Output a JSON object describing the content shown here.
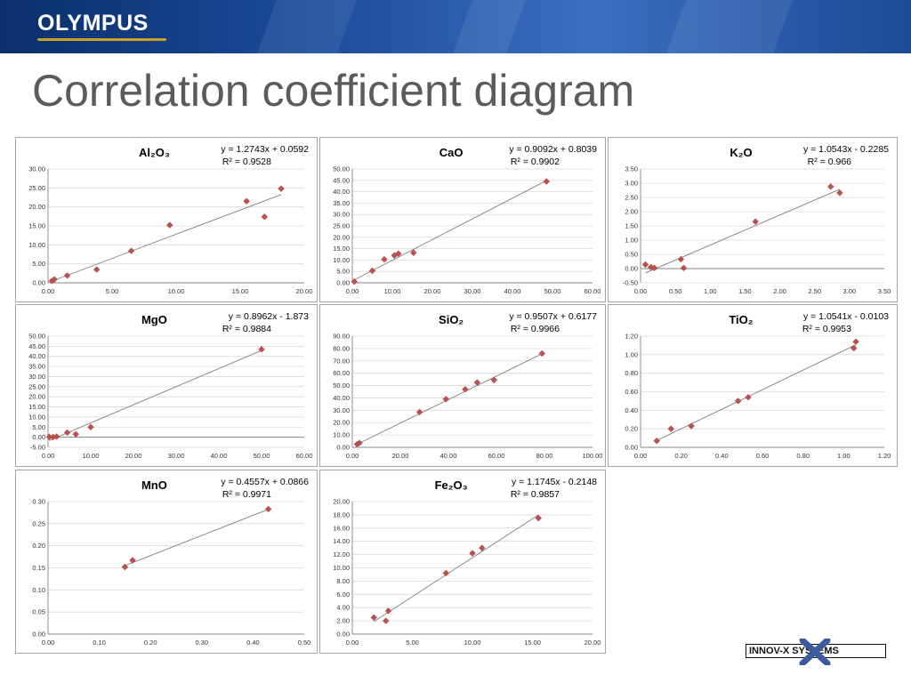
{
  "header": {
    "brand": "OLYMPUS"
  },
  "slide_title": "Correlation coefficient diagram",
  "footer": {
    "logo_text": "INNOV-X SYSTEMS"
  },
  "colors": {
    "marker": "#c0504d",
    "trendline": "#7f7f7f",
    "grid": "#d9d9d9",
    "title_text": "#5b5b5b"
  },
  "chart_data": [
    {
      "id": "al2o3",
      "type": "scatter",
      "title": "Al₂O₃",
      "equation": "y = 1.2743x + 0.0592",
      "r2": "R² = 0.9528",
      "xlim": [
        0,
        20
      ],
      "xticks": [
        0,
        5,
        10,
        15,
        20
      ],
      "ylim": [
        0,
        30
      ],
      "yticks": [
        0,
        5,
        10,
        15,
        20,
        25,
        30
      ],
      "decimals": 2,
      "points": [
        [
          0.3,
          0.5
        ],
        [
          0.5,
          0.9
        ],
        [
          1.5,
          1.9
        ],
        [
          3.8,
          3.5
        ],
        [
          6.5,
          8.4
        ],
        [
          9.5,
          15.2
        ],
        [
          15.5,
          21.5
        ],
        [
          16.9,
          17.4
        ],
        [
          18.2,
          24.8
        ]
      ],
      "trend": [
        0.3,
        18.2
      ]
    },
    {
      "id": "cao",
      "type": "scatter",
      "title": "CaO",
      "equation": "y = 0.9092x + 0.8039",
      "r2": "R² = 0.9902",
      "xlim": [
        0,
        60
      ],
      "xticks": [
        0,
        10,
        20,
        30,
        40,
        50,
        60
      ],
      "ylim": [
        0,
        50
      ],
      "yticks": [
        0,
        5,
        10,
        15,
        20,
        25,
        30,
        35,
        40,
        45,
        50
      ],
      "decimals": 2,
      "points": [
        [
          0.5,
          0.5
        ],
        [
          5,
          5.3
        ],
        [
          8,
          10.3
        ],
        [
          10.5,
          12
        ],
        [
          11.5,
          12.8
        ],
        [
          15.3,
          13.2
        ],
        [
          48.5,
          44.5
        ]
      ],
      "trend": [
        0.5,
        48.5
      ]
    },
    {
      "id": "k2o",
      "type": "scatter",
      "title": "K₂O",
      "equation": "y = 1.0543x - 0.2285",
      "r2": "R² = 0.966",
      "xlim": [
        0,
        3.5
      ],
      "xticks": [
        0,
        0.5,
        1,
        1.5,
        2,
        2.5,
        3,
        3.5
      ],
      "ylim": [
        -0.5,
        3.5
      ],
      "yticks": [
        -0.5,
        0,
        0.5,
        1,
        1.5,
        2,
        2.5,
        3,
        3.5
      ],
      "decimals": 2,
      "points": [
        [
          0.07,
          0.14
        ],
        [
          0.15,
          0.05
        ],
        [
          0.2,
          0.02
        ],
        [
          0.58,
          0.33
        ],
        [
          0.62,
          0.02
        ],
        [
          1.65,
          1.65
        ],
        [
          2.73,
          2.88
        ],
        [
          2.86,
          2.66
        ]
      ],
      "trend": [
        0.07,
        2.86
      ]
    },
    {
      "id": "mgo",
      "type": "scatter",
      "title": "MgO",
      "equation": "y = 0.8962x - 1.873",
      "r2": "R² = 0.9884",
      "xlim": [
        0,
        60
      ],
      "xticks": [
        0,
        10,
        20,
        30,
        40,
        50,
        60
      ],
      "ylim": [
        -5,
        50
      ],
      "yticks": [
        -5,
        0,
        5,
        10,
        15,
        20,
        25,
        30,
        35,
        40,
        45,
        50
      ],
      "decimals": 2,
      "points": [
        [
          0.3,
          0.2
        ],
        [
          1.2,
          0.1
        ],
        [
          2,
          0.3
        ],
        [
          4.5,
          2.3
        ],
        [
          6.5,
          1.5
        ],
        [
          10,
          5
        ],
        [
          50,
          43.5
        ]
      ],
      "trend": [
        0.3,
        50
      ]
    },
    {
      "id": "sio2",
      "type": "scatter",
      "title": "SiO₂",
      "equation": "y = 0.9507x + 0.6177",
      "r2": "R² = 0.9966",
      "xlim": [
        0,
        100
      ],
      "xticks": [
        0,
        20,
        40,
        60,
        80,
        100
      ],
      "ylim": [
        0,
        90
      ],
      "yticks": [
        0,
        10,
        20,
        30,
        40,
        50,
        60,
        70,
        80,
        90
      ],
      "decimals": 2,
      "points": [
        [
          2,
          2.5
        ],
        [
          3,
          3.5
        ],
        [
          28,
          28.5
        ],
        [
          39,
          39
        ],
        [
          47,
          47
        ],
        [
          52,
          52.5
        ],
        [
          59,
          54.5
        ],
        [
          79,
          76
        ]
      ],
      "trend": [
        2,
        79
      ]
    },
    {
      "id": "tio2",
      "type": "scatter",
      "title": "TiO₂",
      "equation": "y = 1.0541x - 0.0103",
      "r2": "R² = 0.9953",
      "xlim": [
        0,
        1.2
      ],
      "xticks": [
        0,
        0.2,
        0.4,
        0.6,
        0.8,
        1,
        1.2
      ],
      "ylim": [
        0,
        1.2
      ],
      "yticks": [
        0,
        0.2,
        0.4,
        0.6,
        0.8,
        1,
        1.2
      ],
      "decimals": 2,
      "points": [
        [
          0.08,
          0.07
        ],
        [
          0.15,
          0.2
        ],
        [
          0.25,
          0.23
        ],
        [
          0.48,
          0.5
        ],
        [
          0.53,
          0.54
        ],
        [
          1.05,
          1.07
        ],
        [
          1.06,
          1.14
        ]
      ],
      "trend": [
        0.08,
        1.06
      ]
    },
    {
      "id": "mno",
      "type": "scatter",
      "title": "MnO",
      "equation": "y = 0.4557x + 0.0866",
      "r2": "R² = 0.9971",
      "xlim": [
        0,
        0.5
      ],
      "xticks": [
        0,
        0.1,
        0.2,
        0.3,
        0.4,
        0.5
      ],
      "ylim": [
        0,
        0.3
      ],
      "yticks": [
        0,
        0.05,
        0.1,
        0.15,
        0.2,
        0.25,
        0.3
      ],
      "decimals": 2,
      "points": [
        [
          0.15,
          0.152
        ],
        [
          0.165,
          0.167
        ],
        [
          0.43,
          0.283
        ]
      ],
      "trend": [
        0.15,
        0.43
      ]
    },
    {
      "id": "fe2o3",
      "type": "scatter",
      "title": "Fe₂O₃",
      "equation": "y = 1.1745x - 0.2148",
      "r2": "R² = 0.9857",
      "xlim": [
        0,
        20
      ],
      "xticks": [
        0,
        5,
        10,
        15,
        20
      ],
      "ylim": [
        0,
        20
      ],
      "yticks": [
        0,
        2,
        4,
        6,
        8,
        10,
        12,
        14,
        16,
        18,
        20
      ],
      "decimals": 2,
      "points": [
        [
          1.8,
          2.5
        ],
        [
          2.8,
          2
        ],
        [
          3,
          3.5
        ],
        [
          7.8,
          9.2
        ],
        [
          10,
          12.2
        ],
        [
          10.8,
          13
        ],
        [
          15.5,
          17.5
        ]
      ],
      "trend": [
        1.8,
        15.5
      ]
    }
  ]
}
